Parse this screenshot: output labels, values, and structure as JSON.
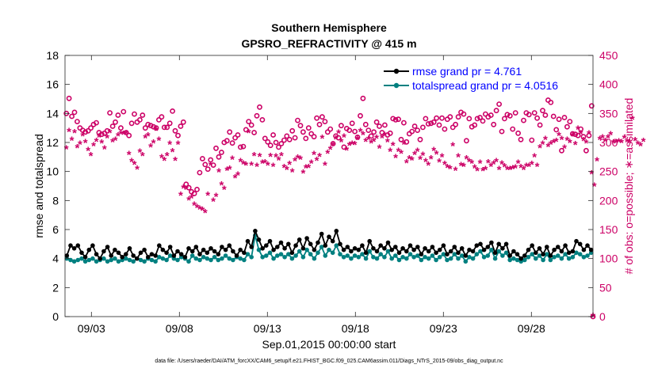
{
  "chart_data": {
    "type": "scatter",
    "title": "Southern Hemisphere",
    "subtitle": "GPSRO_REFRACTIVITY @ 415 m",
    "xlabel": "Sep.01,2015 00:00:00 start",
    "ylabel_left": "rmse and totalspread",
    "ylabel_right": "# of obs: o=possible; ∗=assimilated",
    "footer": "data file: /Users/raeder/DAI/ATM_forcXX/CAM6_setup/f.e21.FHIST_BGC.f09_025.CAM6assim.011/Diags_NTrS_2015-09/obs_diag_output.nc",
    "x_range_days": [
      0.5,
      30.5
    ],
    "x_tick_labels": [
      "09/03",
      "09/08",
      "09/13",
      "09/18",
      "09/23",
      "09/28"
    ],
    "x_tick_days": [
      2,
      7,
      12,
      17,
      22,
      27
    ],
    "y_left_range": [
      0,
      18
    ],
    "y_left_ticks": [
      "0",
      "2",
      "4",
      "6",
      "8",
      "10",
      "12",
      "14",
      "16",
      "18"
    ],
    "y_right_range": [
      0,
      450
    ],
    "y_right_ticks": [
      "0",
      "50",
      "100",
      "150",
      "200",
      "250",
      "300",
      "350",
      "400",
      "450"
    ],
    "legend": [
      {
        "label": "rmse grand pr = 4.761",
        "color": "#000000"
      },
      {
        "label": "totalspread grand pr = 4.0516",
        "color": "#008080"
      }
    ],
    "colors": {
      "rmse": "#000000",
      "spread": "#008080",
      "obs": "#cc0066",
      "legend_text": "#0000ff"
    },
    "samples_per_day": 4,
    "series": [
      {
        "name": "rmse",
        "values": [
          4.2,
          4.9,
          4.7,
          4.9,
          4.4,
          4.1,
          4.6,
          4.9,
          4.3,
          4.0,
          4.5,
          4.8,
          4.2,
          4.6,
          4.4,
          4.1,
          4.3,
          4.7,
          4.2,
          4.0,
          4.4,
          4.6,
          4.1,
          4.3,
          4.2,
          4.9,
          4.6,
          4.4,
          4.8,
          4.2,
          4.5,
          4.3,
          4.1,
          4.7,
          4.5,
          4.8,
          4.3,
          4.6,
          4.4,
          4.7,
          4.5,
          4.3,
          4.8,
          4.6,
          4.9,
          4.5,
          4.2,
          4.6,
          4.4,
          5.2,
          4.8,
          5.9,
          5.3,
          4.7,
          4.9,
          5.2,
          4.6,
          4.8,
          5.1,
          4.7,
          5.0,
          4.4,
          4.9,
          5.3,
          4.7,
          5.4,
          5.0,
          4.6,
          5.1,
          5.7,
          4.9,
          5.5,
          5.2,
          5.9,
          5.0,
          4.6,
          4.8,
          4.5,
          4.7,
          4.6,
          4.9,
          4.4,
          5.2,
          4.7,
          4.5,
          4.9,
          4.7,
          5.1,
          4.6,
          4.8,
          4.4,
          4.7,
          4.5,
          4.9,
          4.6,
          4.8,
          4.3,
          4.7,
          4.5,
          4.8,
          4.4,
          4.6,
          4.9,
          4.3,
          4.5,
          4.8,
          4.4,
          4.7,
          4.2,
          4.6,
          4.5,
          4.9,
          5.0,
          4.6,
          4.8,
          5.1,
          4.4,
          5.0,
          4.7,
          5.0,
          4.2,
          4.5,
          4.3,
          4.0,
          4.2,
          4.6,
          4.9,
          4.4,
          4.7,
          4.3,
          4.8,
          4.2,
          4.6,
          4.8,
          4.5,
          4.9,
          4.4,
          4.5,
          5.2,
          5.0,
          4.6,
          4.9,
          4.6
        ]
      },
      {
        "name": "totalspread",
        "values": [
          4.0,
          3.9,
          3.8,
          3.9,
          4.0,
          3.8,
          3.9,
          4.0,
          3.8,
          3.9,
          4.0,
          3.8,
          3.9,
          4.0,
          3.8,
          3.9,
          4.0,
          3.9,
          3.8,
          4.0,
          3.9,
          3.8,
          4.0,
          3.9,
          3.8,
          4.1,
          4.0,
          3.9,
          4.2,
          4.0,
          3.9,
          4.1,
          4.0,
          3.8,
          4.2,
          4.0,
          3.9,
          4.1,
          4.0,
          3.9,
          4.1,
          3.9,
          4.0,
          4.2,
          4.0,
          3.9,
          4.1,
          4.0,
          3.9,
          4.3,
          4.1,
          5.6,
          4.6,
          4.1,
          4.2,
          4.4,
          4.0,
          4.2,
          4.3,
          4.1,
          4.3,
          4.0,
          4.2,
          4.5,
          4.1,
          4.6,
          4.3,
          4.0,
          4.4,
          4.8,
          4.2,
          4.6,
          4.4,
          4.9,
          4.3,
          4.1,
          4.2,
          4.0,
          4.2,
          4.1,
          4.3,
          4.0,
          4.5,
          4.1,
          4.0,
          4.3,
          4.1,
          4.5,
          4.0,
          4.2,
          3.9,
          4.1,
          4.0,
          4.3,
          4.1,
          4.2,
          3.9,
          4.1,
          4.0,
          4.2,
          3.9,
          4.1,
          4.3,
          3.9,
          4.0,
          4.3,
          4.0,
          4.2,
          3.8,
          4.1,
          4.0,
          4.3,
          4.5,
          4.1,
          4.2,
          4.6,
          4.0,
          4.5,
          4.2,
          4.4,
          3.9,
          4.0,
          3.9,
          3.8,
          3.9,
          4.1,
          4.3,
          4.0,
          4.2,
          3.9,
          4.3,
          3.9,
          4.1,
          4.2,
          4.0,
          4.3,
          4.0,
          4.1,
          4.4,
          4.3,
          4.1,
          4.2,
          4.4
        ]
      },
      {
        "name": "obs_possible",
        "values": [
          350,
          376,
          345,
          352,
          336,
          325,
          321,
          318,
          320,
          325,
          331,
          334,
          317,
          314,
          316,
          320,
          351,
          328,
          335,
          347,
          325,
          353,
          317,
          312,
          333,
          349,
          335,
          339,
          347,
          325,
          331,
          329,
          327,
          325,
          339,
          344,
          326,
          326,
          333,
          354,
          320,
          312,
          328,
          335,
          228,
          222,
          215,
          212,
          219,
          248,
          272,
          262,
          254,
          270,
          261,
          290,
          275,
          283,
          300,
          303,
          318,
          299,
          308,
          313,
          292,
          293,
          322,
          336,
          330,
          317,
          346,
          361,
          339,
          307,
          301,
          295,
          313,
          300,
          292,
          298,
          304,
          311,
          305,
          320,
          308,
          338,
          329,
          318,
          307,
          325,
          315,
          310,
          342,
          331,
          344,
          336,
          318,
          323,
          298,
          311,
          308,
          329,
          292,
          324,
          321,
          333,
          319,
          309,
          346,
          376,
          331,
          321,
          311,
          318,
          335,
          328,
          317,
          330,
          313,
          316,
          341,
          339,
          340,
          305,
          334,
          301,
          315,
          319,
          328,
          321,
          305,
          326,
          341,
          332,
          333,
          335,
          342,
          330,
          342,
          323,
          340,
          344,
          326,
          331,
          344,
          352,
          349,
          303,
          341,
          327,
          330,
          341,
          343,
          337,
          349,
          344,
          347,
          331,
          355,
          366,
          319,
          341,
          348,
          346,
          323,
          351,
          316,
          305,
          338,
          351,
          348,
          304,
          351,
          342,
          330,
          355,
          347,
          373,
          369,
          345,
          322,
          340,
          286,
          343,
          327,
          336,
          315,
          314,
          312,
          323,
          310,
          286,
          312,
          363
        ]
      },
      {
        "name": "obs_assimilated",
        "values": [
          290,
          320,
          305,
          318,
          292,
          298,
          312,
          301,
          287,
          278,
          295,
          303,
          310,
          300,
          290,
          309,
          318,
          302,
          305,
          312,
          316,
          315,
          316,
          280,
          268,
          263,
          255,
          284,
          278,
          309,
          312,
          293,
          300,
          322,
          305,
          275,
          270,
          278,
          298,
          285,
          270,
          298,
          210,
          222,
          220,
          202,
          205,
          193,
          189,
          186,
          184,
          180,
          210,
          262,
          200,
          208,
          250,
          228,
          220,
          253,
          255,
          272,
          240,
          245,
          268,
          264,
          262,
          318,
          262,
          278,
          260,
          277,
          265,
          266,
          262,
          277,
          260,
          276,
          271,
          278,
          258,
          254,
          263,
          250,
          269,
          274,
          272,
          248,
          257,
          258,
          265,
          280,
          270,
          277,
          308,
          262,
          282,
          289,
          296,
          307,
          317,
          302,
          310,
          288,
          296,
          298,
          297,
          306,
          320,
          314,
          303,
          306,
          300,
          303,
          308,
          291,
          309,
          313,
          302,
          286,
          296,
          275,
          286,
          282,
          298,
          266,
          273,
          271,
          280,
          286,
          272,
          279,
          268,
          262,
          273,
          287,
          281,
          267,
          276,
          263,
          258,
          256,
          295,
          253,
          276,
          261,
          260,
          273,
          268,
          265,
          257,
          252,
          265,
          252,
          254,
          266,
          260,
          264,
          268,
          254,
          264,
          259,
          254,
          254,
          256,
          257,
          265,
          258,
          254,
          260,
          260,
          263,
          276,
          260,
          292,
          298,
          306,
          294,
          298,
          301,
          303,
          313,
          306,
          291,
          305,
          301,
          312,
          297,
          324,
          316,
          304,
          300,
          316,
          247,
          226,
          269,
          306,
          309,
          303,
          309,
          314,
          300,
          301,
          302,
          301,
          308,
          302,
          301,
          341,
          304,
          298,
          295,
          303
        ]
      }
    ]
  }
}
